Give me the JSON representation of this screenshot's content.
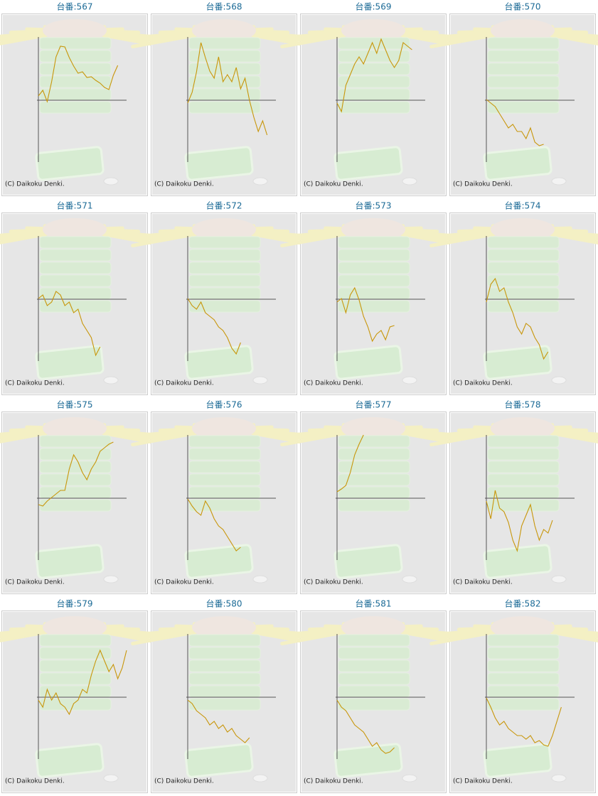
{
  "chart_data": [
    {
      "type": "line",
      "title": "台番:567",
      "caption": "(C) Daikoku Denki.",
      "color": "#c8960a",
      "xlim": [
        0,
        20
      ],
      "ylim": [
        -87,
        89
      ],
      "values": [
        6,
        14,
        -2,
        26,
        61,
        76,
        75,
        60,
        48,
        38,
        40,
        32,
        33,
        28,
        24,
        18,
        15,
        35,
        49
      ]
    },
    {
      "type": "line",
      "title": "台番:568",
      "caption": "(C) Daikoku Denki.",
      "color": "#c8960a",
      "xlim": [
        0,
        20
      ],
      "ylim": [
        -87,
        89
      ],
      "values": [
        -4,
        11,
        40,
        81,
        60,
        41,
        31,
        61,
        26,
        36,
        26,
        46,
        16,
        31,
        0,
        -24,
        -44,
        -29,
        -49
      ]
    },
    {
      "type": "line",
      "title": "台番:569",
      "caption": "(C) Daikoku Denki.",
      "color": "#c8960a",
      "xlim": [
        0,
        20
      ],
      "ylim": [
        -87,
        89
      ],
      "values": [
        -4,
        -16,
        21,
        36,
        51,
        61,
        51,
        66,
        81,
        66,
        86,
        71,
        56,
        46,
        56,
        81,
        76,
        71
      ]
    },
    {
      "type": "line",
      "title": "台番:570",
      "caption": "(C) Daikoku Denki.",
      "color": "#c8960a",
      "xlim": [
        0,
        20
      ],
      "ylim": [
        -87,
        89
      ],
      "values": [
        1,
        -4,
        -9,
        -19,
        -29,
        -39,
        -34,
        -44,
        -44,
        -54,
        -39,
        -59,
        -64,
        -62
      ]
    },
    {
      "type": "line",
      "title": "台番:571",
      "caption": "(C) Daikoku Denki.",
      "color": "#c8960a",
      "xlim": [
        0,
        20
      ],
      "ylim": [
        -87,
        89
      ],
      "values": [
        1,
        6,
        -9,
        -4,
        11,
        6,
        -9,
        -4,
        -19,
        -14,
        -34,
        -44,
        -54,
        -79,
        -67
      ]
    },
    {
      "type": "line",
      "title": "台番:572",
      "caption": "(C) Daikoku Denki.",
      "color": "#c8960a",
      "xlim": [
        0,
        20
      ],
      "ylim": [
        -87,
        89
      ],
      "values": [
        1,
        -9,
        -14,
        -4,
        -19,
        -24,
        -29,
        -39,
        -44,
        -54,
        -69,
        -77,
        -61
      ]
    },
    {
      "type": "line",
      "title": "台番:573",
      "caption": "(C) Daikoku Denki.",
      "color": "#c8960a",
      "xlim": [
        0,
        20
      ],
      "ylim": [
        -87,
        89
      ],
      "values": [
        -4,
        1,
        -19,
        6,
        16,
        -1,
        -24,
        -39,
        -59,
        -49,
        -44,
        -57,
        -39,
        -37
      ]
    },
    {
      "type": "line",
      "title": "台番:574",
      "caption": "(C) Daikoku Denki.",
      "color": "#c8960a",
      "xlim": [
        0,
        20
      ],
      "ylim": [
        -87,
        89
      ],
      "values": [
        -4,
        21,
        29,
        11,
        16,
        -4,
        -19,
        -39,
        -49,
        -34,
        -39,
        -54,
        -64,
        -84,
        -74
      ]
    },
    {
      "type": "line",
      "title": "台番:575",
      "caption": "(C) Daikoku Denki.",
      "color": "#c8960a",
      "xlim": [
        0,
        20
      ],
      "ylim": [
        -87,
        89
      ],
      "values": [
        -9,
        -11,
        -4,
        1,
        6,
        11,
        11,
        41,
        61,
        51,
        36,
        26,
        41,
        51,
        66,
        71,
        76,
        79
      ]
    },
    {
      "type": "line",
      "title": "台番:576",
      "caption": "(C) Daikoku Denki.",
      "color": "#c8960a",
      "xlim": [
        0,
        20
      ],
      "ylim": [
        -87,
        89
      ],
      "values": [
        -1,
        -11,
        -19,
        -24,
        -4,
        -14,
        -29,
        -39,
        -44,
        -54,
        -64,
        -74,
        -69
      ]
    },
    {
      "type": "line",
      "title": "台番:577",
      "caption": "(C) Daikoku Denki.",
      "color": "#c8960a",
      "xlim": [
        0,
        20
      ],
      "ylim": [
        -87,
        89
      ],
      "values": [
        9,
        13,
        18,
        36,
        61,
        76,
        89
      ]
    },
    {
      "type": "line",
      "title": "台番:578",
      "caption": "(C) Daikoku Denki.",
      "color": "#c8960a",
      "xlim": [
        0,
        20
      ],
      "ylim": [
        -87,
        89
      ],
      "values": [
        -4,
        -29,
        11,
        -14,
        -19,
        -34,
        -59,
        -74,
        -39,
        -24,
        -9,
        -39,
        -59,
        -44,
        -49,
        -31
      ]
    },
    {
      "type": "line",
      "title": "台番:579",
      "caption": "(C) Daikoku Denki.",
      "color": "#c8960a",
      "xlim": [
        0,
        20
      ],
      "ylim": [
        -87,
        89
      ],
      "values": [
        -4,
        -14,
        11,
        -4,
        6,
        -9,
        -14,
        -24,
        -9,
        -4,
        11,
        6,
        31,
        51,
        66,
        51,
        36,
        46,
        26,
        41,
        66
      ]
    },
    {
      "type": "line",
      "title": "台番:580",
      "caption": "(C) Daikoku Denki.",
      "color": "#c8960a",
      "xlim": [
        0,
        20
      ],
      "ylim": [
        -87,
        89
      ],
      "values": [
        -4,
        -9,
        -19,
        -24,
        -29,
        -39,
        -34,
        -44,
        -39,
        -49,
        -44,
        -54,
        -59,
        -64,
        -57
      ]
    },
    {
      "type": "line",
      "title": "台番:581",
      "caption": "(C) Daikoku Denki.",
      "color": "#c8960a",
      "xlim": [
        0,
        20
      ],
      "ylim": [
        -87,
        89
      ],
      "values": [
        -4,
        -14,
        -19,
        -29,
        -39,
        -44,
        -49,
        -59,
        -69,
        -64,
        -74,
        -79,
        -77,
        -71
      ]
    },
    {
      "type": "line",
      "title": "台番:582",
      "caption": "(C) Daikoku Denki.",
      "color": "#c8960a",
      "xlim": [
        0,
        20
      ],
      "ylim": [
        -87,
        89
      ],
      "values": [
        -1,
        -14,
        -29,
        -39,
        -34,
        -44,
        -49,
        -54,
        -54,
        -59,
        -54,
        -64,
        -61,
        -67,
        -69,
        -54,
        -34,
        -14
      ]
    }
  ]
}
